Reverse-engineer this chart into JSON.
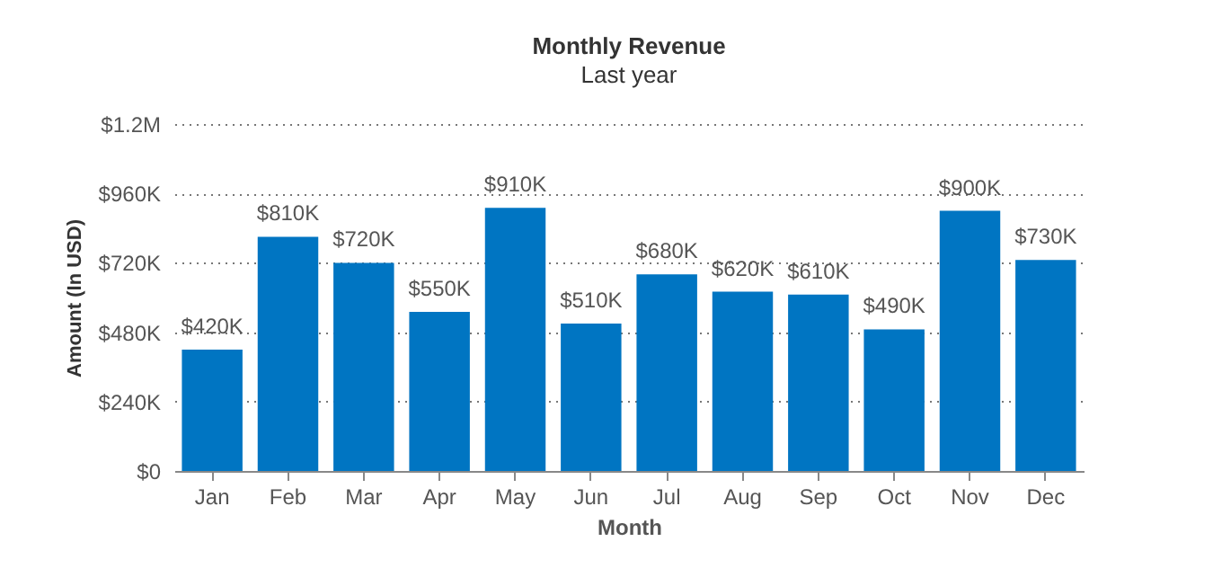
{
  "chart_data": {
    "type": "bar",
    "title": "Monthly Revenue",
    "subtitle": "Last year",
    "xlabel": "Month",
    "ylabel": "Amount (In USD)",
    "categories": [
      "Jan",
      "Feb",
      "Mar",
      "Apr",
      "May",
      "Jun",
      "Jul",
      "Aug",
      "Sep",
      "Oct",
      "Nov",
      "Dec"
    ],
    "values": [
      420000,
      810000,
      720000,
      550000,
      910000,
      510000,
      680000,
      620000,
      610000,
      490000,
      900000,
      730000
    ],
    "value_labels": [
      "$420K",
      "$810K",
      "$720K",
      "$550K",
      "$910K",
      "$510K",
      "$680K",
      "$620K",
      "$610K",
      "$490K",
      "$900K",
      "$730K"
    ],
    "color": "#0075c2",
    "ylim": [
      0,
      1200000
    ],
    "yticks": [
      {
        "value": 0,
        "label": "$0"
      },
      {
        "value": 240000,
        "label": "$240K"
      },
      {
        "value": 480000,
        "label": "$480K"
      },
      {
        "value": 720000,
        "label": "$720K"
      },
      {
        "value": 960000,
        "label": "$960K"
      },
      {
        "value": 1200000,
        "label": "$1.2M"
      }
    ],
    "grid": "y",
    "legend": false
  }
}
